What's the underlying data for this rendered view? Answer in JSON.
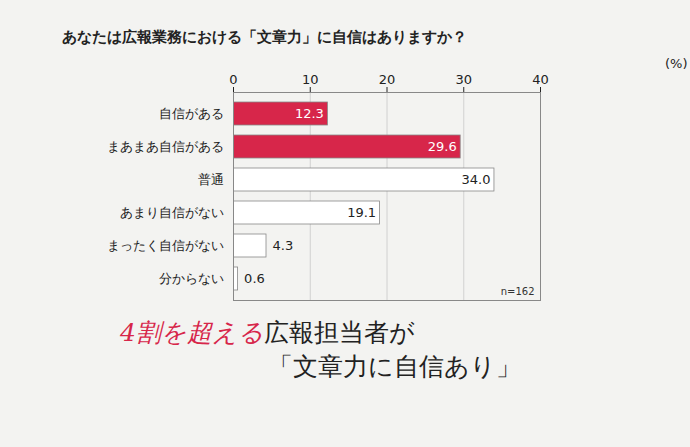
{
  "chart_data": {
    "type": "bar",
    "orientation": "horizontal",
    "title": "あなたは広報業務における「文章力」に自信はありますか？",
    "xlabel": "(%)",
    "categories": [
      "自信がある",
      "まあまあ自信がある",
      "普通",
      "あまり自信がない",
      "まったく自信がない",
      "分からない"
    ],
    "values": [
      12.3,
      29.6,
      34.0,
      19.1,
      4.3,
      0.6
    ],
    "value_labels": [
      "12.3",
      "29.6",
      "34.0",
      "19.1",
      "4.3",
      "0.6"
    ],
    "colors": [
      "#d7264a",
      "#d7264a",
      "#ffffff",
      "#ffffff",
      "#ffffff",
      "#ffffff"
    ],
    "xlim": [
      0,
      40
    ],
    "xticks": [
      0,
      10,
      20,
      30,
      40
    ],
    "grid": true,
    "data_labels": true,
    "annotations": [
      "n=162"
    ],
    "caption": [
      "4割を超える",
      "広報担当者が",
      "「文章力に自信あり」"
    ]
  }
}
